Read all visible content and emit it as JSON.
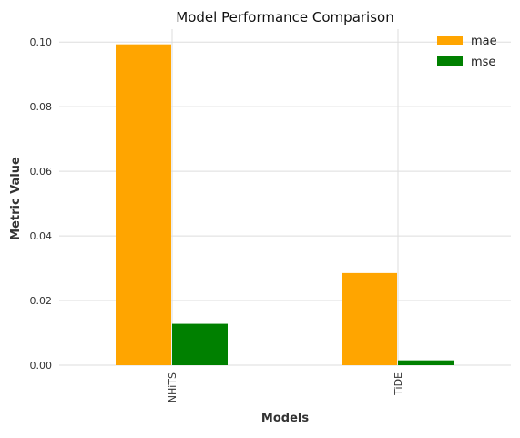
{
  "chart_data": {
    "type": "bar",
    "title": "Model Performance Comparison",
    "xlabel": "Models",
    "ylabel": "Metric Value",
    "categories": [
      "NHiTS",
      "TiDE"
    ],
    "series": [
      {
        "name": "mae",
        "values": [
          0.0993,
          0.0285
        ],
        "color": "#ffa500"
      },
      {
        "name": "mse",
        "values": [
          0.0128,
          0.0015
        ],
        "color": "#008000"
      }
    ],
    "ylim": [
      0,
      0.104
    ],
    "yticks": [
      "0.00",
      "0.02",
      "0.04",
      "0.06",
      "0.08",
      "0.10"
    ],
    "ytick_values": [
      0,
      0.02,
      0.04,
      0.06,
      0.08,
      0.1
    ],
    "grid": true,
    "legend_position": "top-right"
  }
}
